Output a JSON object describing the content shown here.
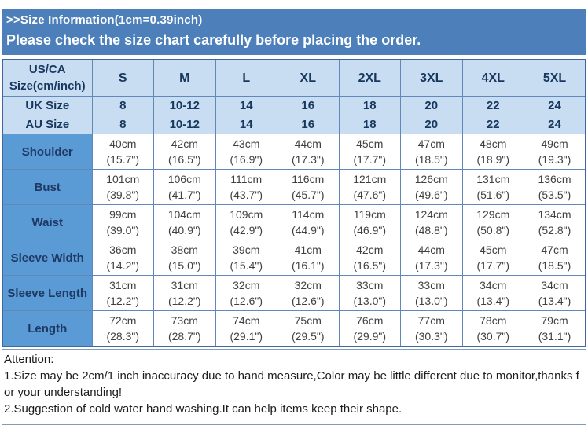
{
  "header": {
    "size_info": ">>Size Information(1cm=0.39inch)",
    "notice": "Please check the size chart carefully before placing the order."
  },
  "table": {
    "corner": {
      "line1": "US/CA",
      "line2": "Size(cm/inch)"
    },
    "columns": [
      "S",
      "M",
      "L",
      "XL",
      "2XL",
      "3XL",
      "4XL",
      "5XL"
    ],
    "uk": {
      "label": "UK Size",
      "values": [
        "8",
        "10-12",
        "14",
        "16",
        "18",
        "20",
        "22",
        "24"
      ]
    },
    "au": {
      "label": "AU Size",
      "values": [
        "8",
        "10-12",
        "14",
        "16",
        "18",
        "20",
        "22",
        "24"
      ]
    },
    "rows": [
      {
        "label": "Shoulder",
        "cm": [
          "40cm",
          "42cm",
          "43cm",
          "44cm",
          "45cm",
          "47cm",
          "48cm",
          "49cm"
        ],
        "inch": [
          "(15.7\")",
          "(16.5\")",
          "(16.9\")",
          "(17.3\")",
          "(17.7\")",
          "(18.5\")",
          "(18.9\")",
          "(19.3\")"
        ]
      },
      {
        "label": "Bust",
        "cm": [
          "101cm",
          "106cm",
          "111cm",
          "116cm",
          "121cm",
          "126cm",
          "131cm",
          "136cm"
        ],
        "inch": [
          "(39.8\")",
          "(41.7\")",
          "(43.7\")",
          "(45.7\")",
          "(47.6\")",
          "(49.6\")",
          "(51.6\")",
          "(53.5\")"
        ]
      },
      {
        "label": "Waist",
        "cm": [
          "99cm",
          "104cm",
          "109cm",
          "114cm",
          "119cm",
          "124cm",
          "129cm",
          "134cm"
        ],
        "inch": [
          "(39.0\")",
          "(40.9\")",
          "(42.9\")",
          "(44.9\")",
          "(46.9\")",
          "(48.8\")",
          "(50.8\")",
          "(52.8\")"
        ]
      },
      {
        "label": "Sleeve Width",
        "cm": [
          "36cm",
          "38cm",
          "39cm",
          "41cm",
          "42cm",
          "44cm",
          "45cm",
          "47cm"
        ],
        "inch": [
          "(14.2\")",
          "(15.0\")",
          "(15.4\")",
          "(16.1\")",
          "(16.5\")",
          "(17.3\")",
          "(17.7\")",
          "(18.5\")"
        ]
      },
      {
        "label": "Sleeve Length",
        "cm": [
          "31cm",
          "31cm",
          "32cm",
          "32cm",
          "33cm",
          "33cm",
          "34cm",
          "34cm"
        ],
        "inch": [
          "(12.2\")",
          "(12.2\")",
          "(12.6\")",
          "(12.6\")",
          "(13.0\")",
          "(13.0\")",
          "(13.4\")",
          "(13.4\")"
        ]
      },
      {
        "label": "Length",
        "cm": [
          "72cm",
          "73cm",
          "74cm",
          "75cm",
          "76cm",
          "77cm",
          "78cm",
          "79cm"
        ],
        "inch": [
          "(28.3\")",
          "(28.7\")",
          "(29.1\")",
          "(29.5\")",
          "(29.9\")",
          "(30.3\")",
          "(30.7\")",
          "(31.1\")"
        ]
      }
    ]
  },
  "attention": {
    "heading": "Attention:",
    "notes": [
      "1.Size may be 2cm/1 inch inaccuracy due to hand measure,Color may be little different due to monitor,thanks for your understanding!",
      "2.Suggestion of cold water hand washing.It can help items keep their shape."
    ]
  },
  "colors": {
    "banner_blue": "#4d80bb",
    "row_label_blue": "#5b9bd5",
    "light_blue": "#c9ddf2",
    "border_blue": "#6188b8",
    "header_text": "#17375e",
    "data_text": "#404040"
  }
}
